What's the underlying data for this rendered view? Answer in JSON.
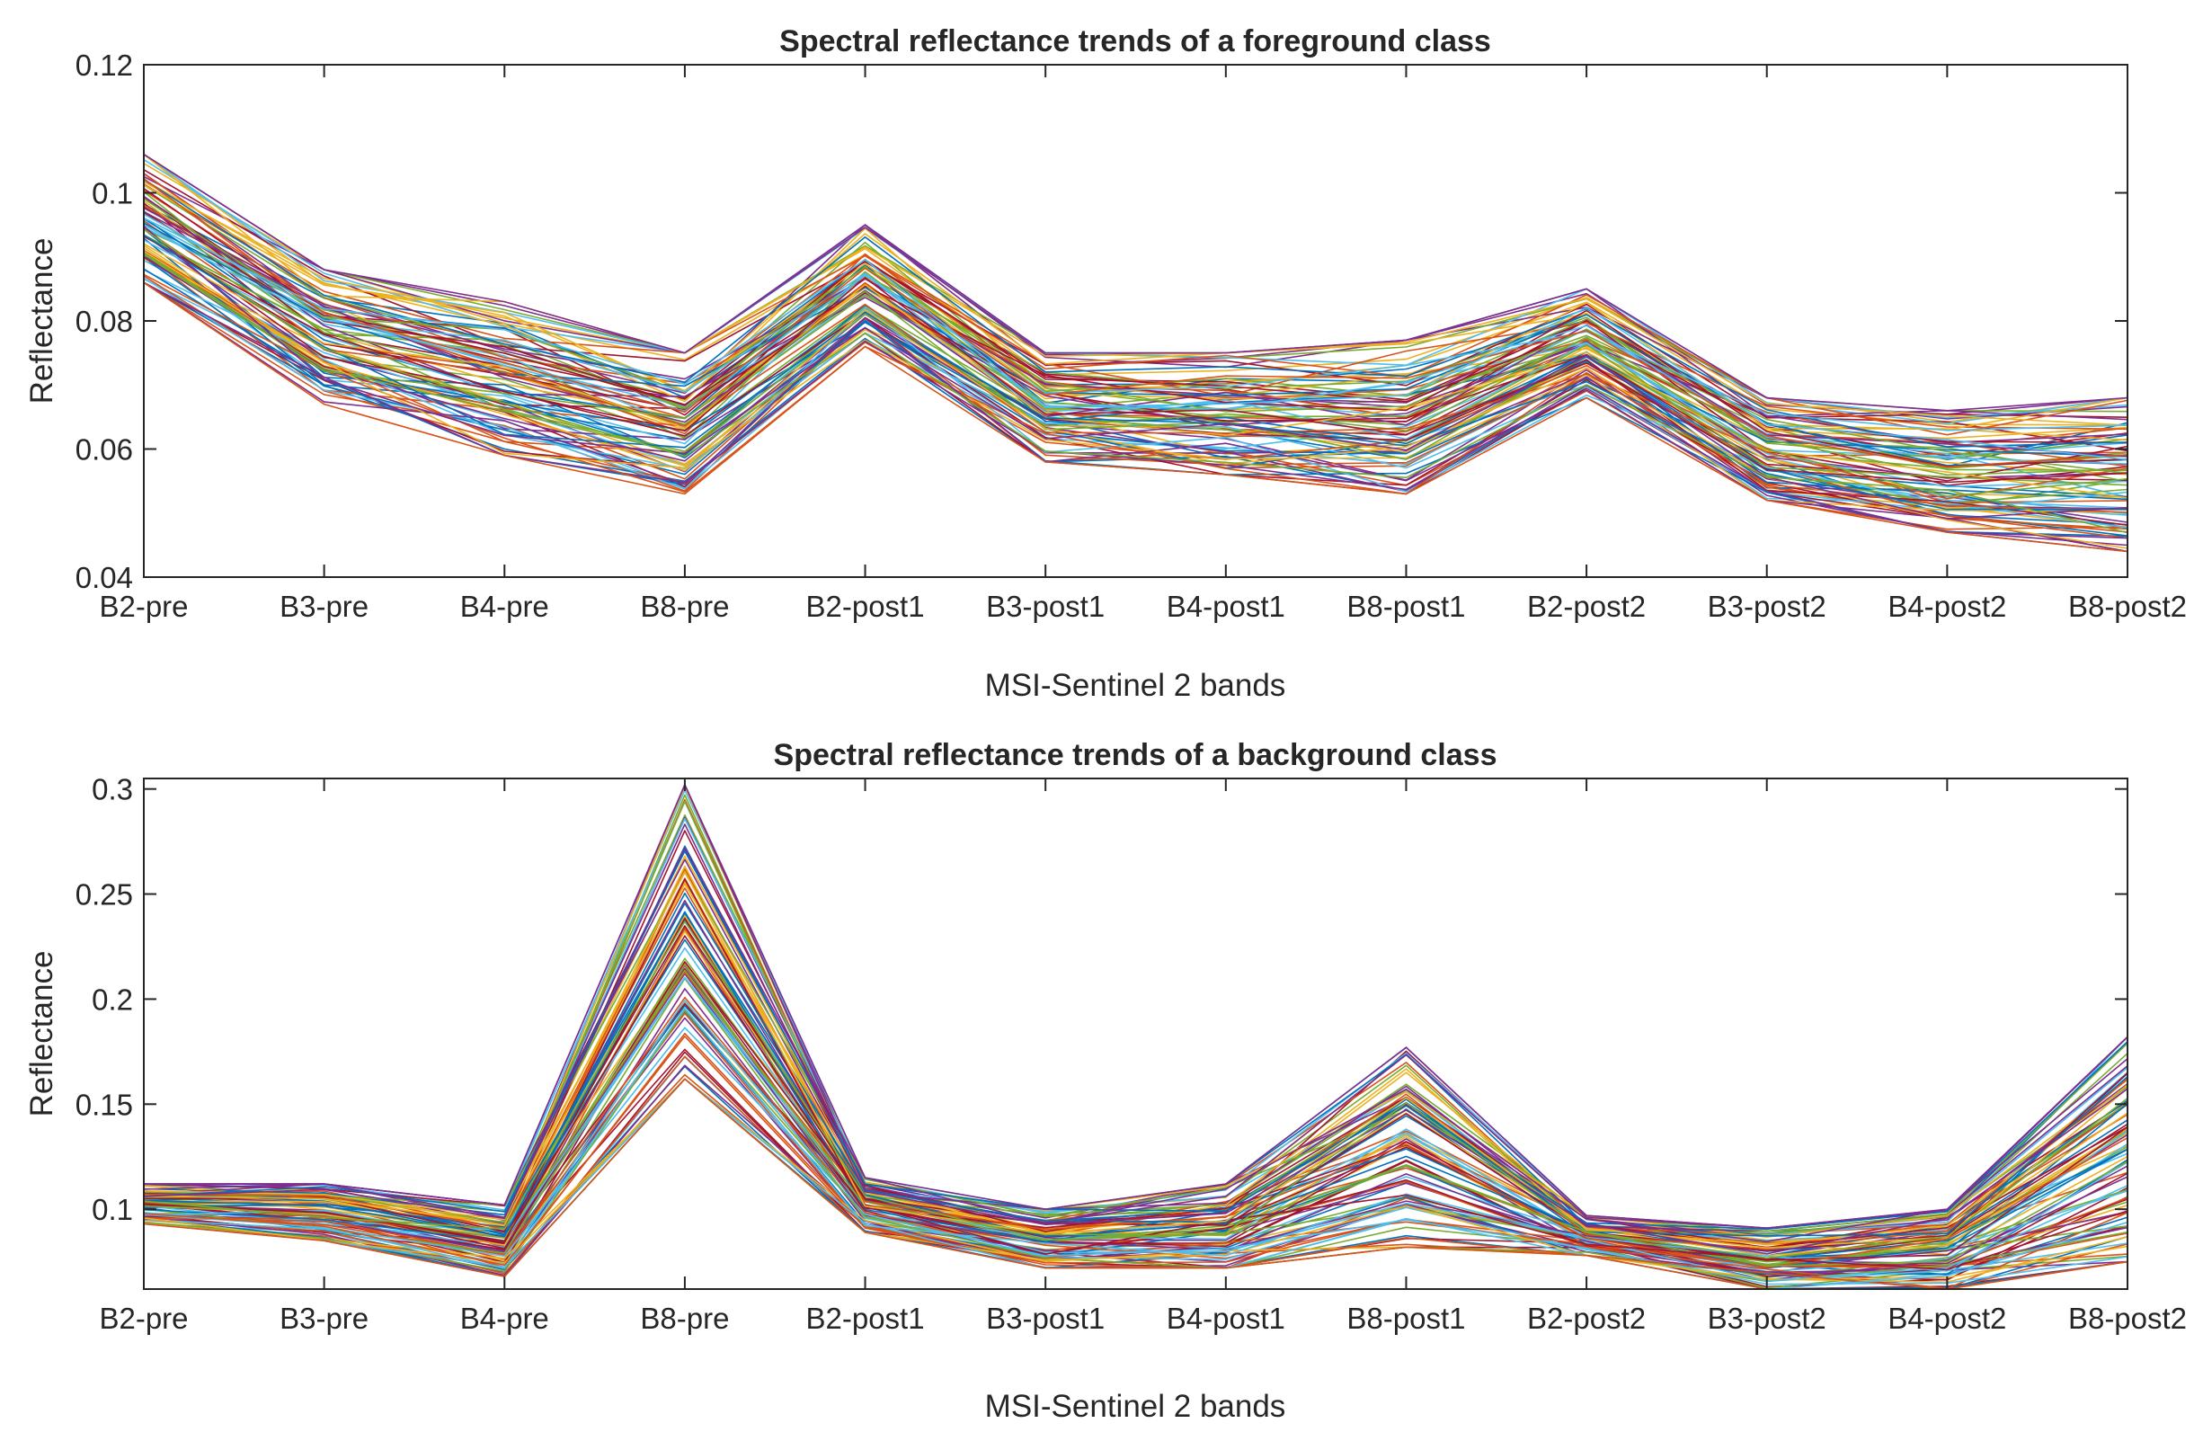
{
  "chart_data": [
    {
      "type": "line",
      "title": "Spectral reflectance trends of a foreground class",
      "xlabel": "MSI-Sentinel 2 bands",
      "ylabel": "Reflectance",
      "categories": [
        "B2-pre",
        "B3-pre",
        "B4-pre",
        "B8-pre",
        "B2-post1",
        "B3-post1",
        "B4-post1",
        "B8-post1",
        "B2-post2",
        "B3-post2",
        "B4-post2",
        "B8-post2"
      ],
      "ylim": [
        0.04,
        0.12
      ],
      "yticks": [
        0.04,
        0.06,
        0.08,
        0.1,
        0.12
      ],
      "ytick_labels": [
        "0.04",
        "0.06",
        "0.08",
        "0.1",
        "0.12"
      ],
      "grid": false,
      "series_count": 90,
      "series_summary": {
        "min": [
          0.086,
          0.067,
          0.059,
          0.053,
          0.076,
          0.058,
          0.056,
          0.053,
          0.068,
          0.052,
          0.047,
          0.044
        ],
        "mean": [
          0.095,
          0.076,
          0.069,
          0.063,
          0.085,
          0.066,
          0.064,
          0.062,
          0.076,
          0.059,
          0.056,
          0.056
        ],
        "max": [
          0.106,
          0.088,
          0.083,
          0.075,
          0.095,
          0.075,
          0.075,
          0.077,
          0.085,
          0.068,
          0.066,
          0.068
        ]
      }
    },
    {
      "type": "line",
      "title": "Spectral reflectance trends of a background class",
      "xlabel": "MSI-Sentinel 2 bands",
      "ylabel": "Reflectance",
      "categories": [
        "B2-pre",
        "B3-pre",
        "B4-pre",
        "B8-pre",
        "B2-post1",
        "B3-post1",
        "B4-post1",
        "B8-post1",
        "B2-post2",
        "B3-post2",
        "B4-post2",
        "B8-post2"
      ],
      "ylim": [
        0.062,
        0.305
      ],
      "yticks": [
        0.1,
        0.15,
        0.2,
        0.25,
        0.3
      ],
      "ytick_labels": [
        "0.1",
        "0.15",
        "0.2",
        "0.25",
        "0.3"
      ],
      "grid": false,
      "series_count": 90,
      "series_summary": {
        "min": [
          0.093,
          0.085,
          0.068,
          0.162,
          0.089,
          0.072,
          0.072,
          0.082,
          0.078,
          0.062,
          0.062,
          0.075
        ],
        "mean": [
          0.102,
          0.097,
          0.085,
          0.225,
          0.101,
          0.086,
          0.09,
          0.125,
          0.088,
          0.078,
          0.079,
          0.13
        ],
        "max": [
          0.112,
          0.112,
          0.102,
          0.302,
          0.115,
          0.1,
          0.112,
          0.177,
          0.097,
          0.091,
          0.1,
          0.182
        ]
      }
    }
  ]
}
